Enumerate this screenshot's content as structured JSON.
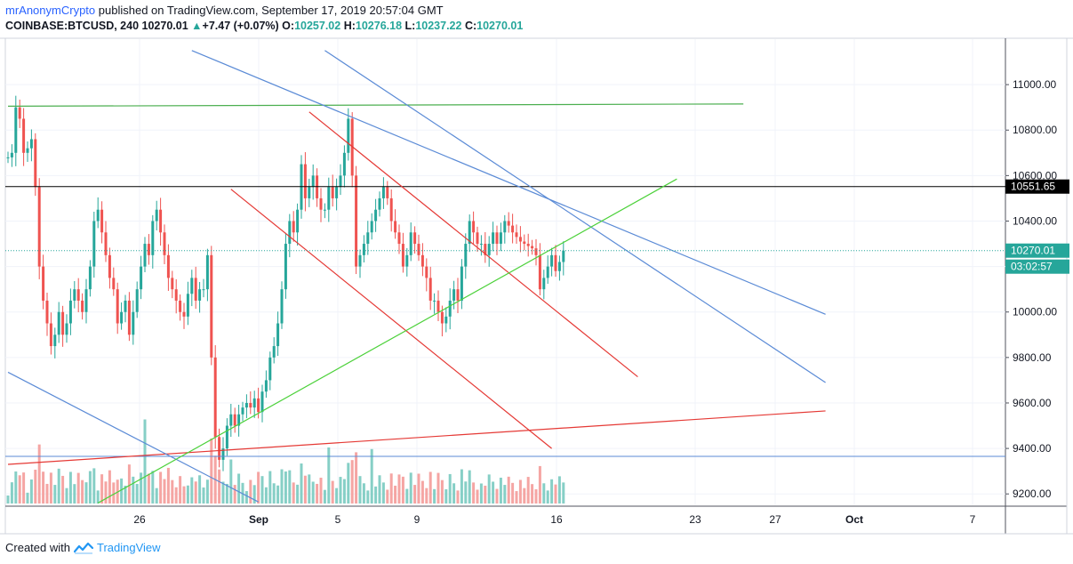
{
  "header": {
    "author": "mrAnonymCrypto",
    "published": "published on TradingView.com, September 17, 2019 20:57:04 GMT",
    "symbol": "COINBASE:BTCUSD, 240",
    "last": "10270.01",
    "change_arrow": "▲",
    "change": "+7.47 (+0.07%)",
    "o_label": "O:",
    "o": "10257.02",
    "h_label": "H:",
    "h": "10276.18",
    "l_label": "L:",
    "l": "10237.22",
    "c_label": "C:",
    "c": "10270.01"
  },
  "footer": {
    "created_with": "Created with",
    "brand": "TradingView",
    "logo_icon": "tradingview-logo-icon"
  },
  "colors": {
    "up": "#26a69a",
    "down": "#ef5350",
    "vol_up": "#86cfc6",
    "vol_down": "#f5a5a3",
    "accent": "#2962ff"
  },
  "price_axis": {
    "ticks": [
      "11000.00",
      "10800.00",
      "10600.00",
      "10400.00",
      "10200.00",
      "10000.00",
      "9800.00",
      "9600.00",
      "9400.00",
      "9200.00"
    ],
    "last_price_label": "10270.01",
    "countdown_label": "03:02:57",
    "hline_label": "10551.65"
  },
  "time_axis": {
    "labels": [
      {
        "text": "26",
        "bold": false
      },
      {
        "text": "Sep",
        "bold": true
      },
      {
        "text": "5",
        "bold": false
      },
      {
        "text": "9",
        "bold": false
      },
      {
        "text": "16",
        "bold": false
      },
      {
        "text": "23",
        "bold": false
      },
      {
        "text": "27",
        "bold": false
      },
      {
        "text": "Oct",
        "bold": true
      },
      {
        "text": "7",
        "bold": false
      }
    ]
  },
  "chart_data": {
    "type": "candlestick",
    "symbol": "COINBASE:BTCUSD",
    "interval": "240",
    "ylim": [
      9150,
      11200
    ],
    "grid": true,
    "closes": [
      10680,
      10700,
      10900,
      10850,
      10700,
      10720,
      10760,
      10550,
      10200,
      10050,
      9950,
      9850,
      9900,
      10000,
      9900,
      9950,
      10050,
      10100,
      10050,
      10000,
      10100,
      10200,
      10400,
      10450,
      10350,
      10250,
      10150,
      10100,
      9950,
      10000,
      10050,
      9900,
      10000,
      10100,
      10200,
      10300,
      10250,
      10400,
      10450,
      10350,
      10250,
      10150,
      10100,
      10050,
      10000,
      9980,
      10080,
      10150,
      10050,
      10100,
      10100,
      10250,
      9800,
      9450,
      9350,
      9400,
      9500,
      9550,
      9500,
      9550,
      9580,
      9600,
      9580,
      9620,
      9560,
      9650,
      9700,
      9800,
      9850,
      9950,
      10100,
      10300,
      10400,
      10350,
      10450,
      10650,
      10500,
      10550,
      10600,
      10500,
      10450,
      10450,
      10550,
      10500,
      10550,
      10600,
      10700,
      10850,
      10600,
      10200,
      10250,
      10300,
      10350,
      10400,
      10450,
      10500,
      10550,
      10500,
      10400,
      10350,
      10300,
      10200,
      10250,
      10350,
      10300,
      10250,
      10200,
      10150,
      10050,
      10050,
      10000,
      9950,
      9980,
      10050,
      10100,
      10050,
      10200,
      10300,
      10400,
      10350,
      10300,
      10300,
      10250,
      10300,
      10350,
      10300,
      10350,
      10400,
      10380,
      10350,
      10330,
      10310,
      10300,
      10290,
      10280,
      10250,
      10100,
      10150,
      10200,
      10250,
      10180,
      10220,
      10270.01
    ]
  },
  "drawings": [
    {
      "type": "trendline",
      "color": "#4caf50",
      "from": {
        "bar": 0,
        "price": 10905
      },
      "to": {
        "bar": 188,
        "price": 10915
      }
    },
    {
      "type": "horizontal_line",
      "color": "#000000",
      "price": 10551.65
    },
    {
      "type": "horizontal_line",
      "color": "#5b8bd6",
      "price": 9365
    },
    {
      "type": "trendline",
      "color": "#e53935",
      "from": {
        "bar": 0,
        "price": 9330
      },
      "to": {
        "bar": 209,
        "price": 9565
      }
    },
    {
      "type": "trendline",
      "color": "#5b8bd6",
      "from": {
        "bar": 0,
        "price": 9735
      },
      "to": {
        "bar": 64,
        "price": 9165
      }
    },
    {
      "type": "trendline",
      "color": "#5b8bd6",
      "from": {
        "bar": 47,
        "price": 11150
      },
      "to": {
        "bar": 209,
        "price": 9990
      }
    },
    {
      "type": "trendline",
      "color": "#5b8bd6",
      "from": {
        "bar": 81,
        "price": 11150
      },
      "to": {
        "bar": 209,
        "price": 9690
      }
    },
    {
      "type": "trendline",
      "color": "#e53935",
      "from": {
        "bar": 77,
        "price": 10880
      },
      "to": {
        "bar": 161,
        "price": 9715
      }
    },
    {
      "type": "trendline",
      "color": "#e53935",
      "from": {
        "bar": 57,
        "price": 10540
      },
      "to": {
        "bar": 139,
        "price": 9400
      }
    },
    {
      "type": "trendline",
      "color": "#4cd13a",
      "from": {
        "bar": 23,
        "price": 9160
      },
      "to": {
        "bar": 171,
        "price": 10585
      }
    }
  ]
}
